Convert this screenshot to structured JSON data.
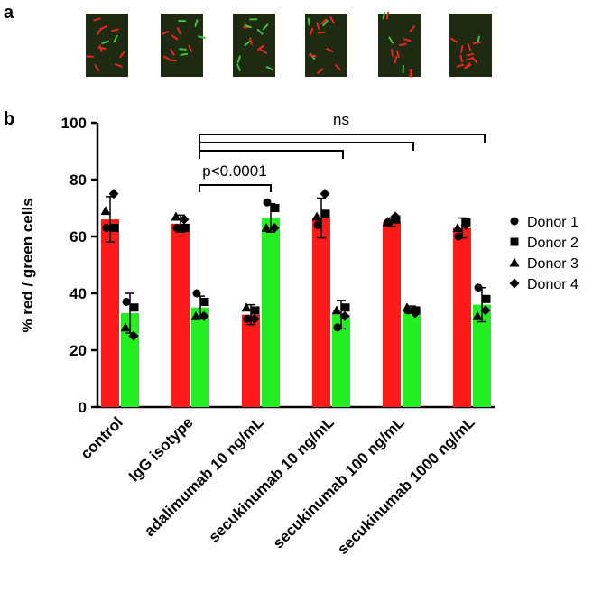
{
  "panel_labels": [
    "a",
    "b"
  ],
  "chart_data": {
    "type": "bar",
    "y_label": "% red / green cells",
    "categories": [
      "control",
      "IgG isotype",
      "adalimumab 10 ng/mL",
      "secukinumab 10 ng/mL",
      "secukinumab 100 ng/mL",
      "secukinumab 1000 ng/mL"
    ],
    "series": [
      {
        "color": "#ff1a1a",
        "values": [
          66,
          64.5,
          32.5,
          66.5,
          65,
          63
        ],
        "errors": [
          8,
          3,
          3.5,
          7,
          1.5,
          3.5
        ]
      },
      {
        "color": "#22ee22",
        "values": [
          33,
          35,
          66.5,
          32.5,
          34.5,
          36
        ],
        "errors": [
          7,
          4,
          5,
          5,
          1,
          6
        ]
      }
    ],
    "donors": [
      {
        "name": "Donor 1",
        "marker": "circle",
        "values": [
          [
            63,
            63,
            31,
            64,
            65,
            60
          ],
          [
            37,
            40,
            72,
            28,
            34,
            42
          ]
        ]
      },
      {
        "name": "Donor 2",
        "marker": "square",
        "values": [
          [
            63,
            63,
            34,
            68,
            66,
            65
          ],
          [
            35,
            37,
            70,
            35,
            34,
            38
          ]
        ]
      },
      {
        "name": "Donor 3",
        "marker": "triangle",
        "values": [
          [
            69,
            67,
            35,
            67,
            65,
            63
          ],
          [
            28,
            32,
            63,
            34,
            35,
            32
          ]
        ]
      },
      {
        "name": "Donor 4",
        "marker": "diamond",
        "values": [
          [
            75,
            66,
            31,
            75,
            67,
            64
          ],
          [
            25,
            32,
            63,
            32,
            33,
            34
          ]
        ]
      }
    ],
    "annotations": [
      "ns",
      "p<0.0001"
    ],
    "ylim": [
      0,
      100
    ],
    "yticks": [
      0,
      20,
      40,
      60,
      80,
      100
    ]
  }
}
